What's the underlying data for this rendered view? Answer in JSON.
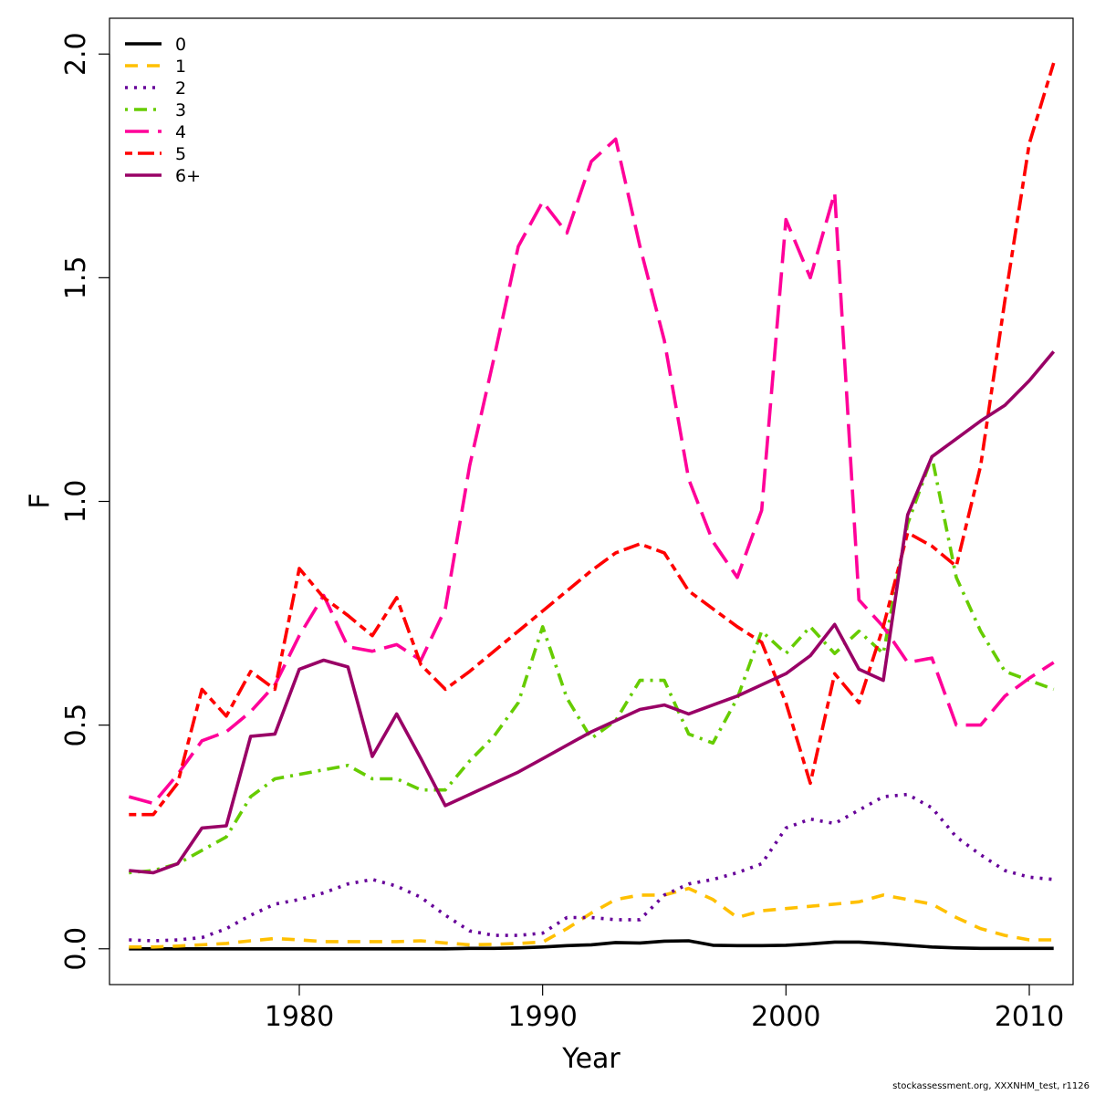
{
  "chart_data": {
    "type": "line",
    "xlabel": "Year",
    "ylabel": "F",
    "xlim": [
      1972.2,
      2011.8
    ],
    "ylim": [
      -0.08,
      2.08
    ],
    "xticks": [
      1980,
      1990,
      2000,
      2010
    ],
    "yticks": [
      0.0,
      0.5,
      1.0,
      1.5,
      2.0
    ],
    "ytick_labels": [
      "0.0",
      "0.5",
      "1.0",
      "1.5",
      "2.0"
    ],
    "grid": false,
    "legend_position": "top-left",
    "x": [
      1973,
      1974,
      1975,
      1976,
      1977,
      1978,
      1979,
      1980,
      1981,
      1982,
      1983,
      1984,
      1985,
      1986,
      1987,
      1988,
      1989,
      1990,
      1991,
      1992,
      1993,
      1994,
      1995,
      1996,
      1997,
      1998,
      1999,
      2000,
      2001,
      2002,
      2003,
      2004,
      2005,
      2006,
      2007,
      2008,
      2009,
      2010,
      2011
    ],
    "series": [
      {
        "name": "0",
        "color": "#000000",
        "dash": "solid",
        "values": [
          0.0,
          0.0,
          0.0,
          0.0,
          0.0,
          0.0,
          0.0,
          0.0,
          0.0,
          0.0,
          0.0,
          0.0,
          0.0,
          0.0,
          0.001,
          0.001,
          0.002,
          0.004,
          0.007,
          0.009,
          0.014,
          0.013,
          0.017,
          0.018,
          0.008,
          0.007,
          0.007,
          0.008,
          0.011,
          0.015,
          0.015,
          0.012,
          0.008,
          0.004,
          0.002,
          0.001,
          0.001,
          0.001,
          0.001
        ]
      },
      {
        "name": "1",
        "color": "#FFC000",
        "dash": "dashed",
        "values": [
          0.004,
          0.004,
          0.006,
          0.009,
          0.012,
          0.018,
          0.023,
          0.02,
          0.016,
          0.016,
          0.016,
          0.016,
          0.018,
          0.013,
          0.009,
          0.01,
          0.012,
          0.015,
          0.045,
          0.08,
          0.11,
          0.12,
          0.12,
          0.135,
          0.11,
          0.07,
          0.085,
          0.09,
          0.095,
          0.1,
          0.105,
          0.12,
          0.11,
          0.1,
          0.07,
          0.045,
          0.03,
          0.02,
          0.02
        ]
      },
      {
        "name": "2",
        "color": "#660099",
        "dash": "dotted",
        "values": [
          0.02,
          0.018,
          0.02,
          0.025,
          0.045,
          0.075,
          0.1,
          0.11,
          0.125,
          0.145,
          0.155,
          0.14,
          0.115,
          0.075,
          0.04,
          0.03,
          0.03,
          0.035,
          0.07,
          0.07,
          0.065,
          0.065,
          0.12,
          0.145,
          0.155,
          0.17,
          0.19,
          0.27,
          0.29,
          0.28,
          0.31,
          0.34,
          0.345,
          0.315,
          0.25,
          0.21,
          0.175,
          0.16,
          0.155
        ]
      },
      {
        "name": "3",
        "color": "#66CC00",
        "dash": "dotdash",
        "values": [
          0.17,
          0.175,
          0.19,
          0.22,
          0.25,
          0.34,
          0.38,
          0.39,
          0.4,
          0.41,
          0.38,
          0.38,
          0.355,
          0.355,
          0.42,
          0.475,
          0.55,
          0.72,
          0.56,
          0.47,
          0.51,
          0.6,
          0.6,
          0.48,
          0.46,
          0.56,
          0.71,
          0.66,
          0.72,
          0.66,
          0.71,
          0.66,
          0.95,
          1.1,
          0.83,
          0.71,
          0.62,
          0.6,
          0.58
        ]
      },
      {
        "name": "4",
        "color": "#FF0099",
        "dash": "longdash",
        "values": [
          0.34,
          0.325,
          0.39,
          0.465,
          0.485,
          0.53,
          0.59,
          0.7,
          0.79,
          0.675,
          0.665,
          0.68,
          0.645,
          0.76,
          1.08,
          1.32,
          1.57,
          1.67,
          1.6,
          1.76,
          1.81,
          1.57,
          1.36,
          1.05,
          0.91,
          0.83,
          0.98,
          1.63,
          1.5,
          1.69,
          0.78,
          0.72,
          0.64,
          0.65,
          0.5,
          0.5,
          0.565,
          0.605,
          0.64
        ]
      },
      {
        "name": "5",
        "color": "#FF0000",
        "dash": "twodash",
        "values": [
          0.3,
          0.3,
          0.37,
          0.58,
          0.52,
          0.62,
          0.58,
          0.85,
          0.785,
          0.745,
          0.7,
          0.785,
          0.635,
          0.58,
          0.62,
          0.665,
          0.71,
          0.755,
          0.8,
          0.845,
          0.885,
          0.905,
          0.885,
          0.8,
          0.76,
          0.72,
          0.685,
          0.55,
          0.37,
          0.615,
          0.55,
          0.72,
          0.93,
          0.9,
          0.855,
          1.08,
          1.45,
          1.8,
          1.98
        ]
      },
      {
        "name": "6+",
        "color": "#990066",
        "dash": "solid",
        "values": [
          0.175,
          0.17,
          0.19,
          0.27,
          0.275,
          0.475,
          0.48,
          0.625,
          0.645,
          0.63,
          0.43,
          0.525,
          0.425,
          0.32,
          0.345,
          0.37,
          0.395,
          0.425,
          0.455,
          0.485,
          0.51,
          0.535,
          0.545,
          0.525,
          0.545,
          0.565,
          0.59,
          0.615,
          0.655,
          0.725,
          0.625,
          0.6,
          0.97,
          1.1,
          1.14,
          1.18,
          1.215,
          1.27,
          1.335
        ]
      }
    ]
  },
  "footer": "stockassessment.org, XXXNHM_test, r1126"
}
